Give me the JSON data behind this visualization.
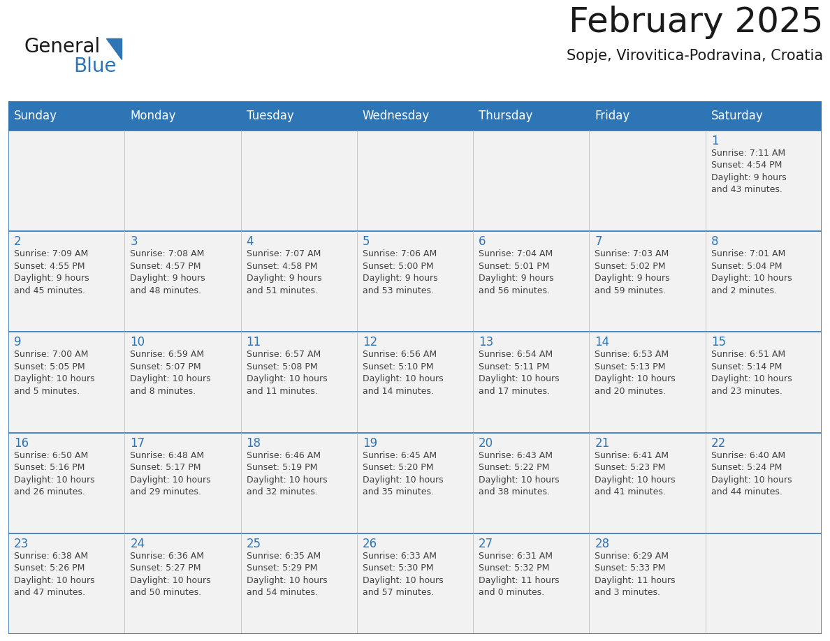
{
  "title": "February 2025",
  "subtitle": "Sopje, Virovitica-Podravina, Croatia",
  "header_bg": "#2E75B6",
  "header_text_color": "#FFFFFF",
  "cell_bg": "#F2F2F2",
  "day_number_color": "#2E75B6",
  "text_color": "#404040",
  "row_border_color": "#2E75B6",
  "col_border_color": "#C0C0C0",
  "days_of_week": [
    "Sunday",
    "Monday",
    "Tuesday",
    "Wednesday",
    "Thursday",
    "Friday",
    "Saturday"
  ],
  "calendar_data": [
    [
      {
        "day": null,
        "info": null
      },
      {
        "day": null,
        "info": null
      },
      {
        "day": null,
        "info": null
      },
      {
        "day": null,
        "info": null
      },
      {
        "day": null,
        "info": null
      },
      {
        "day": null,
        "info": null
      },
      {
        "day": 1,
        "info": "Sunrise: 7:11 AM\nSunset: 4:54 PM\nDaylight: 9 hours\nand 43 minutes."
      }
    ],
    [
      {
        "day": 2,
        "info": "Sunrise: 7:09 AM\nSunset: 4:55 PM\nDaylight: 9 hours\nand 45 minutes."
      },
      {
        "day": 3,
        "info": "Sunrise: 7:08 AM\nSunset: 4:57 PM\nDaylight: 9 hours\nand 48 minutes."
      },
      {
        "day": 4,
        "info": "Sunrise: 7:07 AM\nSunset: 4:58 PM\nDaylight: 9 hours\nand 51 minutes."
      },
      {
        "day": 5,
        "info": "Sunrise: 7:06 AM\nSunset: 5:00 PM\nDaylight: 9 hours\nand 53 minutes."
      },
      {
        "day": 6,
        "info": "Sunrise: 7:04 AM\nSunset: 5:01 PM\nDaylight: 9 hours\nand 56 minutes."
      },
      {
        "day": 7,
        "info": "Sunrise: 7:03 AM\nSunset: 5:02 PM\nDaylight: 9 hours\nand 59 minutes."
      },
      {
        "day": 8,
        "info": "Sunrise: 7:01 AM\nSunset: 5:04 PM\nDaylight: 10 hours\nand 2 minutes."
      }
    ],
    [
      {
        "day": 9,
        "info": "Sunrise: 7:00 AM\nSunset: 5:05 PM\nDaylight: 10 hours\nand 5 minutes."
      },
      {
        "day": 10,
        "info": "Sunrise: 6:59 AM\nSunset: 5:07 PM\nDaylight: 10 hours\nand 8 minutes."
      },
      {
        "day": 11,
        "info": "Sunrise: 6:57 AM\nSunset: 5:08 PM\nDaylight: 10 hours\nand 11 minutes."
      },
      {
        "day": 12,
        "info": "Sunrise: 6:56 AM\nSunset: 5:10 PM\nDaylight: 10 hours\nand 14 minutes."
      },
      {
        "day": 13,
        "info": "Sunrise: 6:54 AM\nSunset: 5:11 PM\nDaylight: 10 hours\nand 17 minutes."
      },
      {
        "day": 14,
        "info": "Sunrise: 6:53 AM\nSunset: 5:13 PM\nDaylight: 10 hours\nand 20 minutes."
      },
      {
        "day": 15,
        "info": "Sunrise: 6:51 AM\nSunset: 5:14 PM\nDaylight: 10 hours\nand 23 minutes."
      }
    ],
    [
      {
        "day": 16,
        "info": "Sunrise: 6:50 AM\nSunset: 5:16 PM\nDaylight: 10 hours\nand 26 minutes."
      },
      {
        "day": 17,
        "info": "Sunrise: 6:48 AM\nSunset: 5:17 PM\nDaylight: 10 hours\nand 29 minutes."
      },
      {
        "day": 18,
        "info": "Sunrise: 6:46 AM\nSunset: 5:19 PM\nDaylight: 10 hours\nand 32 minutes."
      },
      {
        "day": 19,
        "info": "Sunrise: 6:45 AM\nSunset: 5:20 PM\nDaylight: 10 hours\nand 35 minutes."
      },
      {
        "day": 20,
        "info": "Sunrise: 6:43 AM\nSunset: 5:22 PM\nDaylight: 10 hours\nand 38 minutes."
      },
      {
        "day": 21,
        "info": "Sunrise: 6:41 AM\nSunset: 5:23 PM\nDaylight: 10 hours\nand 41 minutes."
      },
      {
        "day": 22,
        "info": "Sunrise: 6:40 AM\nSunset: 5:24 PM\nDaylight: 10 hours\nand 44 minutes."
      }
    ],
    [
      {
        "day": 23,
        "info": "Sunrise: 6:38 AM\nSunset: 5:26 PM\nDaylight: 10 hours\nand 47 minutes."
      },
      {
        "day": 24,
        "info": "Sunrise: 6:36 AM\nSunset: 5:27 PM\nDaylight: 10 hours\nand 50 minutes."
      },
      {
        "day": 25,
        "info": "Sunrise: 6:35 AM\nSunset: 5:29 PM\nDaylight: 10 hours\nand 54 minutes."
      },
      {
        "day": 26,
        "info": "Sunrise: 6:33 AM\nSunset: 5:30 PM\nDaylight: 10 hours\nand 57 minutes."
      },
      {
        "day": 27,
        "info": "Sunrise: 6:31 AM\nSunset: 5:32 PM\nDaylight: 11 hours\nand 0 minutes."
      },
      {
        "day": 28,
        "info": "Sunrise: 6:29 AM\nSunset: 5:33 PM\nDaylight: 11 hours\nand 3 minutes."
      },
      {
        "day": null,
        "info": null
      }
    ]
  ],
  "title_fontsize": 36,
  "subtitle_fontsize": 15,
  "header_fontsize": 12,
  "day_number_fontsize": 12,
  "info_fontsize": 9,
  "logo_general_fontsize": 20,
  "logo_blue_fontsize": 20
}
